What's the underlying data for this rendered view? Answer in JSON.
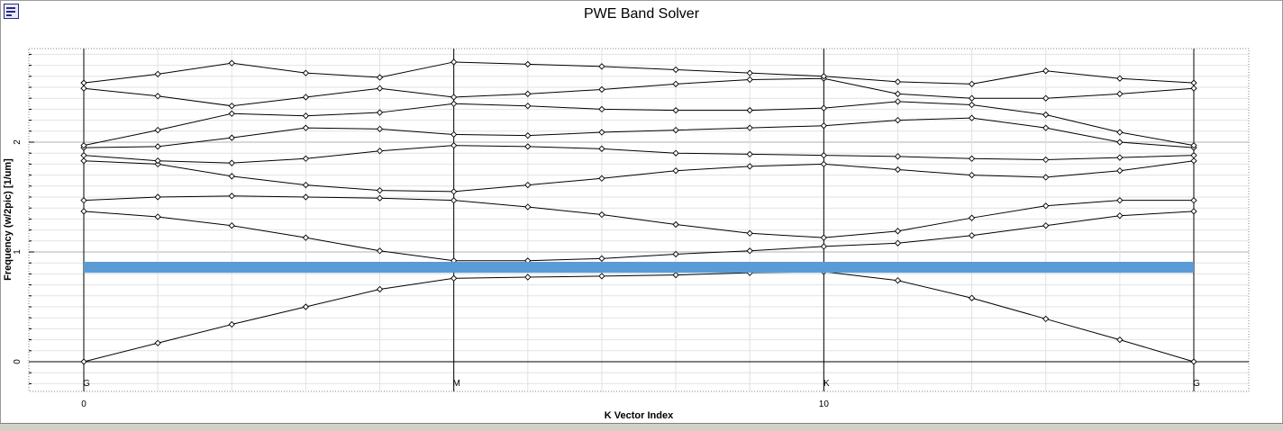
{
  "chart_data": {
    "type": "line",
    "title": "PWE Band Solver",
    "xlabel": "K Vector Index",
    "ylabel": "Frequency (w/2pic) [1/um]",
    "xlim": [
      0,
      15
    ],
    "ylim": [
      -0.25,
      2.85
    ],
    "x_ticks": [
      {
        "value": 0,
        "label": "0"
      },
      {
        "value": 10,
        "label": "10"
      }
    ],
    "y_ticks": [
      {
        "value": 0,
        "label": "0"
      },
      {
        "value": 1,
        "label": "1"
      },
      {
        "value": 2,
        "label": "2"
      }
    ],
    "symmetry_points": [
      {
        "x": 0,
        "label": "G"
      },
      {
        "x": 5,
        "label": "M"
      },
      {
        "x": 10,
        "label": "K"
      },
      {
        "x": 15,
        "label": "G"
      }
    ],
    "x": [
      0,
      1,
      2,
      3,
      4,
      5,
      6,
      7,
      8,
      9,
      10,
      11,
      12,
      13,
      14,
      15
    ],
    "series": [
      {
        "values": [
          0.0,
          0.17,
          0.34,
          0.5,
          0.66,
          0.76,
          0.77,
          0.78,
          0.79,
          0.81,
          0.82,
          0.74,
          0.58,
          0.39,
          0.2,
          0.0
        ]
      },
      {
        "values": [
          1.37,
          1.32,
          1.24,
          1.13,
          1.01,
          0.92,
          0.92,
          0.94,
          0.98,
          1.01,
          1.05,
          1.08,
          1.15,
          1.24,
          1.33,
          1.37
        ]
      },
      {
        "values": [
          1.47,
          1.5,
          1.51,
          1.5,
          1.49,
          1.47,
          1.41,
          1.34,
          1.25,
          1.17,
          1.13,
          1.19,
          1.31,
          1.42,
          1.47,
          1.47
        ]
      },
      {
        "values": [
          1.83,
          1.8,
          1.69,
          1.61,
          1.56,
          1.55,
          1.61,
          1.67,
          1.74,
          1.78,
          1.8,
          1.75,
          1.7,
          1.68,
          1.74,
          1.83
        ]
      },
      {
        "values": [
          1.88,
          1.83,
          1.81,
          1.85,
          1.92,
          1.97,
          1.96,
          1.94,
          1.9,
          1.89,
          1.88,
          1.87,
          1.85,
          1.84,
          1.86,
          1.88
        ]
      },
      {
        "values": [
          1.95,
          1.96,
          2.04,
          2.13,
          2.12,
          2.07,
          2.06,
          2.09,
          2.11,
          2.13,
          2.15,
          2.2,
          2.22,
          2.13,
          2.0,
          1.95
        ]
      },
      {
        "values": [
          1.97,
          2.11,
          2.26,
          2.24,
          2.27,
          2.35,
          2.33,
          2.3,
          2.29,
          2.29,
          2.31,
          2.37,
          2.34,
          2.25,
          2.09,
          1.97
        ]
      },
      {
        "values": [
          2.49,
          2.42,
          2.33,
          2.41,
          2.49,
          2.41,
          2.44,
          2.48,
          2.53,
          2.57,
          2.58,
          2.44,
          2.4,
          2.4,
          2.44,
          2.49
        ]
      },
      {
        "values": [
          2.54,
          2.62,
          2.72,
          2.63,
          2.59,
          2.73,
          2.71,
          2.69,
          2.66,
          2.63,
          2.6,
          2.55,
          2.53,
          2.65,
          2.58,
          2.54
        ]
      }
    ],
    "band_gap": {
      "from": 0.81,
      "to": 0.91,
      "x_from": 0,
      "x_to": 15,
      "color": "#5b9bd5"
    },
    "line_color": "#000000",
    "grid": true
  }
}
